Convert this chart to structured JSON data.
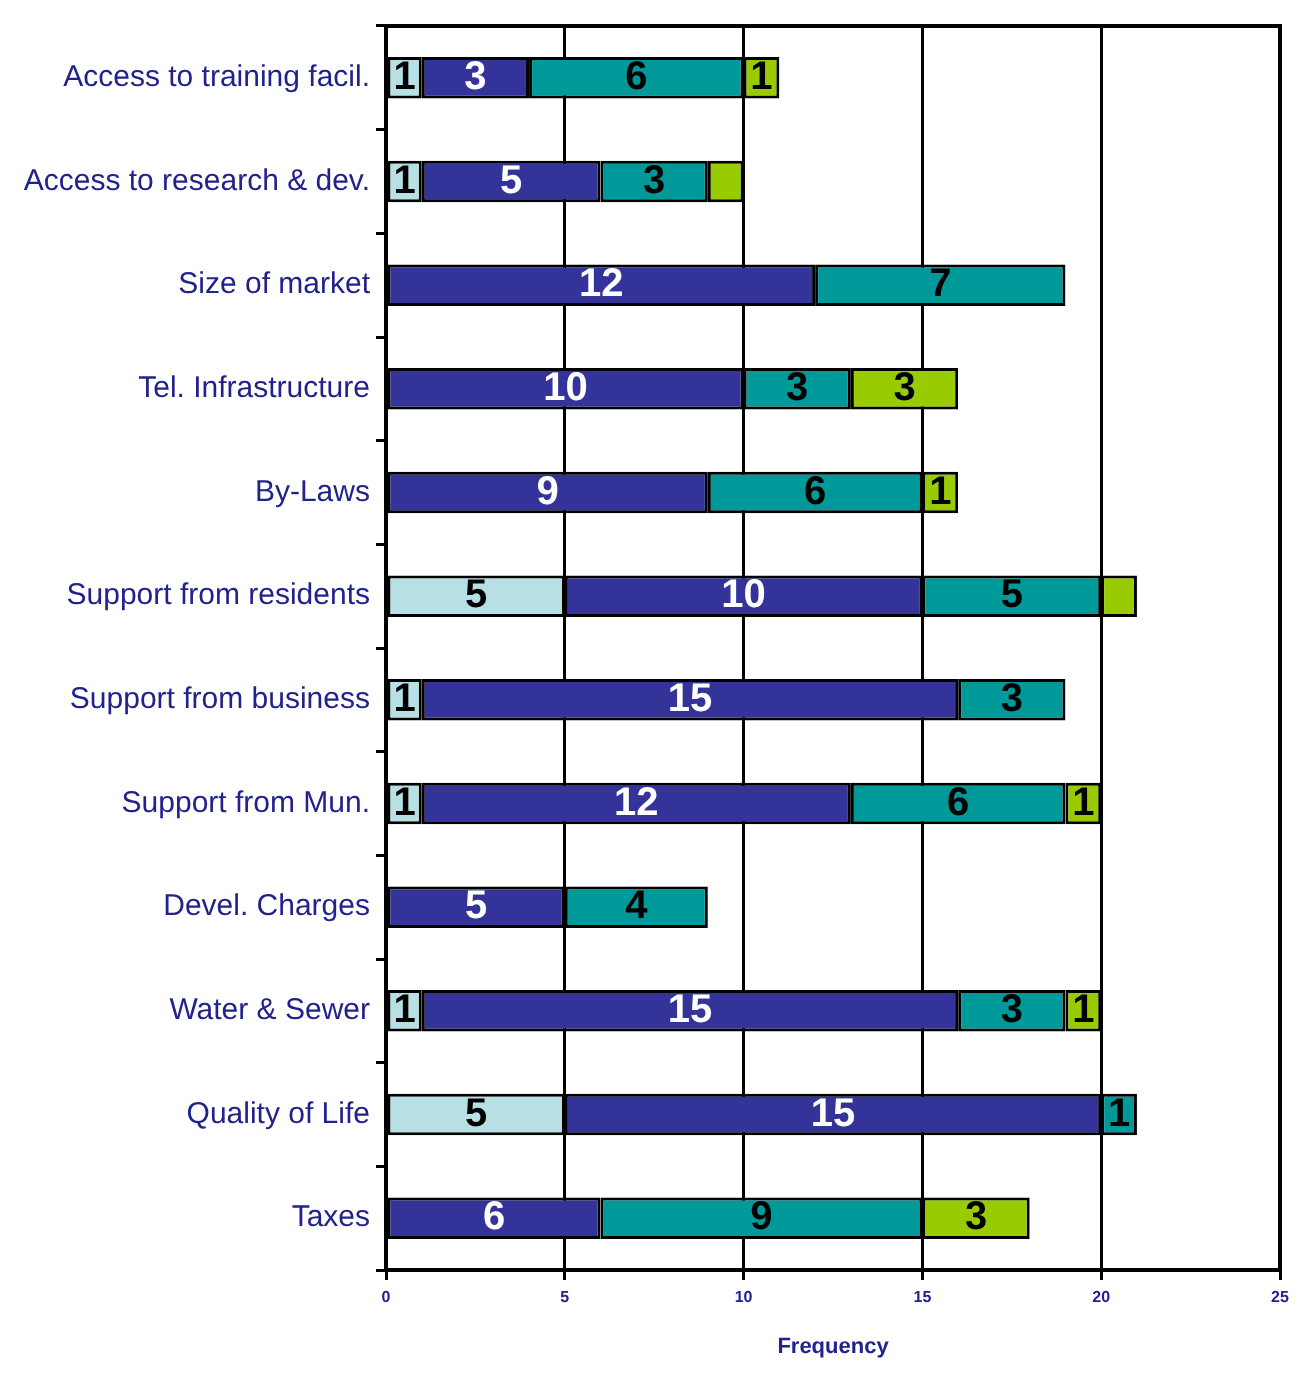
{
  "chart_data": {
    "type": "bar",
    "orientation": "horizontal",
    "stacked": true,
    "categories": [
      "Access to training facil.",
      "Access to research & dev.",
      "Size of market",
      "Tel. Infrastructure",
      "By-Laws",
      "Support from residents",
      "Support from business",
      "Support from Mun.",
      "Devel. Charges",
      "Water & Sewer",
      "Quality of Life",
      "Taxes"
    ],
    "series": [
      {
        "color": "#b7e0e4",
        "values": [
          1,
          1,
          null,
          null,
          null,
          5,
          1,
          1,
          null,
          1,
          5,
          null
        ],
        "value_labels": [
          "1",
          "1",
          null,
          null,
          null,
          "5",
          "1",
          "1",
          null,
          "1",
          "5",
          null
        ]
      },
      {
        "color": "#333399",
        "values": [
          3,
          5,
          12,
          10,
          9,
          10,
          15,
          12,
          5,
          15,
          15,
          6
        ],
        "value_labels": [
          "3",
          "5",
          "12",
          "10",
          "9",
          "10",
          "15",
          "12",
          "5",
          "15",
          "15",
          "6"
        ]
      },
      {
        "color": "#009999",
        "values": [
          6,
          3,
          7,
          3,
          6,
          5,
          3,
          6,
          4,
          3,
          1,
          9
        ],
        "value_labels": [
          "6",
          "3",
          "7",
          "3",
          "6",
          "5",
          "3",
          "6",
          "4",
          "3",
          "1",
          "9"
        ]
      },
      {
        "color": "#99cc00",
        "values": [
          1,
          1,
          null,
          3,
          1,
          1,
          null,
          1,
          null,
          1,
          null,
          3
        ],
        "value_labels": [
          "1",
          null,
          null,
          "3",
          "1",
          null,
          null,
          "1",
          null,
          "1",
          null,
          "3"
        ]
      }
    ],
    "xlim": [
      0,
      25
    ],
    "xticks": [
      0,
      5,
      10,
      15,
      20,
      25
    ],
    "xlabel": "Frequency",
    "grid": "x",
    "legend": false
  }
}
